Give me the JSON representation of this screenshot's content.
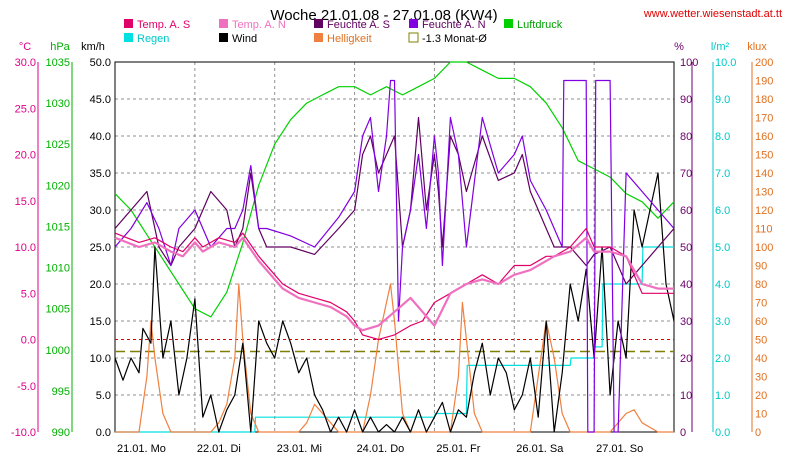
{
  "chart_data": {
    "type": "line",
    "title": "Woche 21.01.08 - 27.01.08 (KW4)",
    "source_label": "www.wetter.wiesenstadt.at.tt",
    "x_labels": [
      "21.01. Mo",
      "22.01. Di",
      "23.01. Mi",
      "24.01. Do",
      "25.01. Fr",
      "26.01. Sa",
      "27.01. So"
    ],
    "axes": [
      {
        "id": "temp",
        "unit": "°C",
        "min": -10,
        "max": 30,
        "step": 5,
        "decimals": 1,
        "color": "#e0008a",
        "side": "left"
      },
      {
        "id": "press",
        "unit": "hPa",
        "min": 990,
        "max": 1035,
        "step": 5,
        "decimals": 0,
        "color": "#00b000",
        "side": "left"
      },
      {
        "id": "wind",
        "unit": "km/h",
        "min": 0,
        "max": 50,
        "step": 5,
        "decimals": 1,
        "color": "#000000",
        "side": "left"
      },
      {
        "id": "hum",
        "unit": "%",
        "min": 0,
        "max": 100,
        "step": 10,
        "decimals": 0,
        "color": "#6b006b",
        "side": "right"
      },
      {
        "id": "rain",
        "unit": "l/m²",
        "min": 0,
        "max": 10,
        "step": 1,
        "decimals": 1,
        "color": "#00c8c8",
        "side": "right"
      },
      {
        "id": "lux",
        "unit": "klux",
        "min": 0,
        "max": 200,
        "step": 10,
        "decimals": 0,
        "color": "#e07020",
        "side": "right"
      }
    ],
    "legend": [
      {
        "label": "Temp. A. S",
        "color": "#e0006a",
        "shape": "box"
      },
      {
        "label": "Temp. A. N",
        "color": "#f070c0",
        "shape": "box"
      },
      {
        "label": "Feuchte A. S",
        "color": "#600060",
        "shape": "box"
      },
      {
        "label": "Feuchte A. N",
        "color": "#8000e0",
        "shape": "box"
      },
      {
        "label": "Luftdruck",
        "color": "#00d000",
        "shape": "box"
      },
      {
        "label": "Regen",
        "color": "#00e0e0",
        "shape": "box"
      },
      {
        "label": "Wind",
        "color": "#000000",
        "shape": "box"
      },
      {
        "label": "Helligkeit",
        "color": "#f08040",
        "shape": "box"
      },
      {
        "label": "-1.3 Monat-Ø",
        "color": "#808000",
        "shape": "outline"
      }
    ],
    "series": [
      {
        "name": "Temp. A. S",
        "axis": "temp",
        "color": "#e0006a",
        "width": 1.2,
        "x": [
          0,
          0.15,
          0.3,
          0.5,
          0.7,
          0.85,
          1,
          1.1,
          1.3,
          1.5,
          1.6,
          1.8,
          2,
          2.1,
          2.3,
          2.5,
          2.7,
          2.9,
          3,
          3.1,
          3.3,
          3.5,
          3.7,
          3.85,
          4,
          4.2,
          4.4,
          4.6,
          4.8,
          5,
          5.2,
          5.4,
          5.5,
          5.7,
          5.9,
          6,
          6.2,
          6.4,
          6.6,
          6.8,
          7
        ],
        "y": [
          11.5,
          11,
          10.5,
          11,
          10,
          9.5,
          11,
          10,
          11,
          10.5,
          11.5,
          9,
          7,
          6,
          5,
          4.5,
          4,
          3,
          2,
          0.5,
          0,
          0.5,
          1.5,
          2,
          4,
          5,
          6,
          7,
          6,
          8,
          8,
          9,
          9,
          10,
          12,
          10,
          10,
          9,
          5,
          5,
          5
        ]
      },
      {
        "name": "Temp. A. N",
        "axis": "temp",
        "color": "#f070c0",
        "width": 2.2,
        "x": [
          0,
          0.15,
          0.3,
          0.5,
          0.7,
          0.85,
          1,
          1.1,
          1.3,
          1.5,
          1.6,
          1.8,
          2,
          2.1,
          2.3,
          2.5,
          2.7,
          2.9,
          3,
          3.1,
          3.3,
          3.5,
          3.7,
          3.85,
          4,
          4.2,
          4.4,
          4.6,
          4.8,
          5,
          5.2,
          5.4,
          5.5,
          5.7,
          5.9,
          6,
          6.2,
          6.4,
          6.6,
          6.8,
          7
        ],
        "y": [
          11,
          10.5,
          10,
          10.5,
          9.5,
          9,
          10.5,
          9.5,
          10.5,
          10,
          11,
          8.5,
          6.5,
          5.5,
          4.5,
          4,
          3.5,
          2.5,
          1.5,
          1,
          1.5,
          3,
          4.5,
          3,
          1.5,
          5,
          6,
          6.5,
          6,
          7,
          7.5,
          8.5,
          9,
          9.5,
          11,
          9.5,
          9.5,
          9,
          6,
          5.5,
          5.5
        ]
      },
      {
        "name": "Feuchte A. S",
        "axis": "hum",
        "color": "#600060",
        "width": 1.2,
        "x": [
          0,
          0.2,
          0.4,
          0.55,
          0.7,
          0.8,
          1,
          1.2,
          1.4,
          1.5,
          1.6,
          1.7,
          1.8,
          1.9,
          2.2,
          2.5,
          2.8,
          3,
          3.1,
          3.2,
          3.3,
          3.4,
          3.5,
          3.6,
          3.7,
          3.8,
          3.9,
          4,
          4.05,
          4.1,
          4.2,
          4.3,
          4.4,
          4.6,
          4.8,
          5,
          5.1,
          5.2,
          5.4,
          5.5,
          5.7,
          5.9,
          6,
          6.2,
          6.4,
          6.6,
          6.8,
          7
        ],
        "y": [
          55,
          60,
          65,
          50,
          45,
          50,
          55,
          65,
          60,
          50,
          55,
          70,
          55,
          50,
          50,
          48,
          55,
          60,
          75,
          80,
          70,
          75,
          80,
          50,
          60,
          85,
          60,
          75,
          65,
          50,
          80,
          75,
          65,
          80,
          68,
          70,
          75,
          65,
          55,
          50,
          50,
          45,
          48,
          50,
          40,
          45,
          50,
          55
        ]
      },
      {
        "name": "Feuchte A. N",
        "axis": "hum",
        "color": "#8000e0",
        "width": 1.2,
        "x": [
          0,
          0.2,
          0.4,
          0.55,
          0.7,
          0.8,
          1,
          1.2,
          1.4,
          1.5,
          1.6,
          1.7,
          1.8,
          1.9,
          2.2,
          2.5,
          2.8,
          3,
          3.1,
          3.2,
          3.3,
          3.4,
          3.45,
          3.5,
          3.55,
          3.6,
          3.7,
          3.8,
          3.9,
          4,
          4.05,
          4.1,
          4.2,
          4.3,
          4.4,
          4.6,
          4.8,
          5,
          5.1,
          5.2,
          5.4,
          5.5,
          5.6,
          5.62,
          5.65,
          5.9,
          5.92,
          6,
          6.02,
          6.2,
          6.25,
          6.3,
          6.4,
          6.6,
          6.8,
          7
        ],
        "y": [
          50,
          55,
          62,
          55,
          45,
          55,
          60,
          50,
          55,
          55,
          60,
          72,
          55,
          55,
          53,
          50,
          58,
          65,
          80,
          85,
          65,
          80,
          95,
          95,
          30,
          50,
          60,
          75,
          55,
          80,
          70,
          45,
          85,
          75,
          50,
          85,
          70,
          75,
          80,
          68,
          60,
          55,
          50,
          95,
          95,
          95,
          0,
          0,
          95,
          95,
          0,
          0,
          70,
          65,
          60,
          55
        ]
      },
      {
        "name": "Luftdruck",
        "axis": "press",
        "color": "#00d000",
        "width": 1.2,
        "x": [
          0,
          0.2,
          0.4,
          0.6,
          0.8,
          1,
          1.2,
          1.4,
          1.6,
          1.8,
          2,
          2.2,
          2.4,
          2.6,
          2.8,
          3,
          3.2,
          3.4,
          3.6,
          3.8,
          4,
          4.2,
          4.4,
          4.6,
          4.8,
          5,
          5.2,
          5.4,
          5.6,
          5.8,
          6,
          6.2,
          6.4,
          6.6,
          6.8,
          7
        ],
        "y": [
          1019,
          1017,
          1014,
          1011,
          1008,
          1005,
          1004,
          1007,
          1013,
          1020,
          1025,
          1028,
          1030,
          1031,
          1032,
          1032,
          1031,
          1032,
          1031,
          1032,
          1033,
          1035,
          1035,
          1034,
          1033,
          1033,
          1032,
          1030,
          1027,
          1023,
          1022,
          1021,
          1019,
          1018,
          1016,
          1018
        ]
      },
      {
        "name": "Regen",
        "axis": "rain",
        "color": "#00e0e0",
        "width": 1.2,
        "x": [
          0,
          1.75,
          1.76,
          4,
          4.01,
          4.4,
          4.41,
          5.7,
          5.71,
          6,
          6.01,
          6.1,
          6.11,
          6.6,
          6.61,
          7
        ],
        "y": [
          0,
          0,
          0.4,
          0.4,
          0.5,
          0.5,
          1.8,
          1.8,
          2,
          2,
          2.3,
          2.3,
          4,
          4,
          5,
          5
        ]
      },
      {
        "name": "Wind",
        "axis": "wind",
        "color": "#000000",
        "width": 1.2,
        "x": [
          0,
          0.1,
          0.2,
          0.3,
          0.35,
          0.45,
          0.5,
          0.6,
          0.7,
          0.8,
          0.9,
          1,
          1.1,
          1.2,
          1.3,
          1.4,
          1.5,
          1.6,
          1.7,
          1.8,
          1.9,
          2,
          2.1,
          2.2,
          2.3,
          2.4,
          2.5,
          2.6,
          2.7,
          2.8,
          2.9,
          3,
          3.1,
          3.2,
          3.3,
          3.4,
          3.5,
          3.6,
          3.7,
          3.8,
          3.9,
          4,
          4.1,
          4.2,
          4.3,
          4.4,
          4.5,
          4.6,
          4.7,
          4.8,
          4.9,
          5,
          5.1,
          5.2,
          5.3,
          5.4,
          5.5,
          5.6,
          5.7,
          5.8,
          5.9,
          6,
          6.1,
          6.2,
          6.3,
          6.4,
          6.5,
          6.6,
          6.7,
          6.8,
          6.9,
          7
        ],
        "y": [
          10,
          7,
          10,
          8,
          14,
          12,
          25,
          10,
          15,
          5,
          10,
          18,
          2,
          5,
          0,
          3,
          5,
          12,
          0,
          15,
          12,
          10,
          15,
          12,
          8,
          10,
          5,
          3,
          0,
          2,
          0,
          3,
          0,
          2,
          0,
          1,
          0,
          2,
          0,
          3,
          0,
          2,
          4,
          0,
          3,
          2,
          8,
          12,
          5,
          10,
          8,
          3,
          5,
          10,
          2,
          15,
          0,
          8,
          20,
          15,
          22,
          10,
          25,
          5,
          15,
          10,
          30,
          25,
          30,
          35,
          20,
          15
        ]
      },
      {
        "name": "Helligkeit",
        "axis": "lux",
        "color": "#f08040",
        "width": 1.2,
        "x": [
          0,
          0.3,
          0.4,
          0.45,
          0.5,
          0.6,
          0.7,
          0.8,
          1,
          1.2,
          1.3,
          1.4,
          1.5,
          1.55,
          1.6,
          1.7,
          1.8,
          2,
          2.2,
          2.3,
          2.4,
          2.5,
          2.6,
          2.8,
          3,
          3.1,
          3.2,
          3.3,
          3.4,
          3.45,
          3.5,
          3.6,
          3.7,
          3.8,
          4,
          4.2,
          4.3,
          4.35,
          4.4,
          4.5,
          4.6,
          4.8,
          5,
          5.2,
          5.3,
          5.4,
          5.5,
          5.6,
          5.7,
          5.8,
          6,
          6.2,
          6.3,
          6.4,
          6.5,
          6.6,
          6.8,
          7
        ],
        "y": [
          0,
          0,
          30,
          60,
          40,
          10,
          0,
          0,
          0,
          0,
          5,
          15,
          40,
          80,
          50,
          10,
          0,
          0,
          0,
          0,
          5,
          15,
          10,
          0,
          0,
          0,
          20,
          50,
          70,
          80,
          60,
          10,
          0,
          0,
          0,
          0,
          30,
          70,
          50,
          10,
          0,
          0,
          0,
          0,
          30,
          60,
          40,
          10,
          0,
          0,
          0,
          0,
          5,
          10,
          12,
          5,
          0,
          0
        ]
      }
    ],
    "reference_line": {
      "label": "-1.3 Monat-Ø",
      "axis": "temp",
      "value": -1.3,
      "color": "#808000"
    },
    "zero_line": {
      "axis": "temp",
      "value": 0,
      "color": "#e00000"
    },
    "grid": true
  }
}
